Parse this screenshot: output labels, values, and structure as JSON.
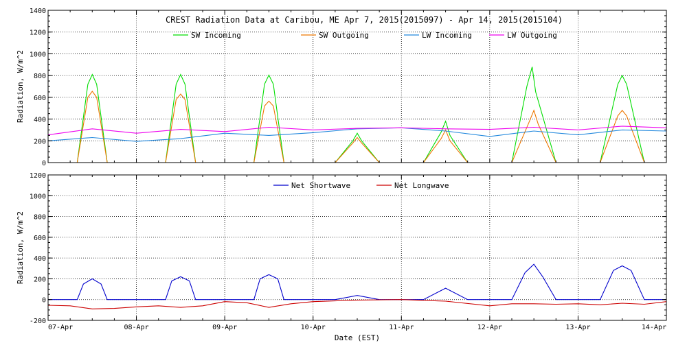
{
  "chart_data": [
    {
      "type": "line",
      "title": "CREST Radiation Data at Caribou, ME   Apr  7, 2015(2015097) - Apr 14, 2015(2015104)",
      "ylabel": "Radiation, W/m^2",
      "xlabel": "",
      "ylim": [
        0,
        1400
      ],
      "yticks": [
        0,
        200,
        400,
        600,
        800,
        1000,
        1200,
        1400
      ],
      "xlim": [
        0,
        7
      ],
      "grid": true,
      "legend_position": "top",
      "x_unit": "days since 07-Apr",
      "series": [
        {
          "name": "SW Incoming",
          "color": "#00dd00",
          "x": [
            0,
            0.33,
            0.45,
            0.5,
            0.55,
            0.67,
            1,
            1.33,
            1.45,
            1.5,
            1.55,
            1.67,
            2,
            2.33,
            2.45,
            2.5,
            2.55,
            2.67,
            3,
            3.25,
            3.45,
            3.5,
            3.55,
            3.75,
            4,
            4.25,
            4.45,
            4.5,
            4.55,
            4.75,
            5,
            5.25,
            5.42,
            5.48,
            5.52,
            5.75,
            6,
            6.25,
            6.45,
            6.5,
            6.55,
            6.75,
            7
          ],
          "y": [
            0,
            0,
            720,
            810,
            720,
            0,
            0,
            0,
            720,
            810,
            720,
            0,
            0,
            0,
            720,
            805,
            720,
            0,
            0,
            0,
            200,
            270,
            200,
            0,
            0,
            0,
            280,
            380,
            250,
            0,
            0,
            0,
            700,
            880,
            650,
            0,
            0,
            0,
            720,
            800,
            720,
            0,
            0
          ]
        },
        {
          "name": "SW Outgoing",
          "color": "#ee7700",
          "x": [
            0,
            0.33,
            0.45,
            0.5,
            0.55,
            0.67,
            1,
            1.33,
            1.45,
            1.5,
            1.55,
            1.67,
            2,
            2.33,
            2.45,
            2.5,
            2.55,
            2.67,
            3,
            3.25,
            3.45,
            3.5,
            3.55,
            3.75,
            4,
            4.25,
            4.45,
            4.5,
            4.55,
            4.75,
            5,
            5.25,
            5.45,
            5.5,
            5.55,
            5.75,
            6,
            6.25,
            6.45,
            6.5,
            6.55,
            6.75,
            7
          ],
          "y": [
            0,
            0,
            600,
            655,
            600,
            0,
            0,
            0,
            580,
            630,
            580,
            0,
            0,
            0,
            520,
            565,
            520,
            0,
            0,
            0,
            180,
            230,
            180,
            0,
            0,
            0,
            220,
            300,
            200,
            0,
            0,
            0,
            380,
            480,
            350,
            0,
            0,
            0,
            430,
            480,
            430,
            0,
            0
          ]
        },
        {
          "name": "LW Incoming",
          "color": "#2288dd",
          "x": [
            0,
            0.5,
            1,
            1.5,
            2,
            2.5,
            3,
            3.5,
            4,
            4.5,
            5,
            5.5,
            6,
            6.5,
            7
          ],
          "y": [
            200,
            230,
            195,
            220,
            270,
            250,
            275,
            310,
            320,
            290,
            240,
            290,
            255,
            300,
            290
          ]
        },
        {
          "name": "LW Outgoing",
          "color": "#ee00ee",
          "x": [
            0,
            0.5,
            1,
            1.5,
            2,
            2.5,
            3,
            3.5,
            4,
            4.5,
            5,
            5.5,
            6,
            6.5,
            7
          ],
          "y": [
            255,
            310,
            270,
            305,
            285,
            325,
            300,
            315,
            320,
            310,
            305,
            325,
            300,
            335,
            320
          ]
        }
      ]
    },
    {
      "type": "line",
      "title": "",
      "ylabel": "Radiation, W/m^2",
      "xlabel": "Date (EST)",
      "ylim": [
        -200,
        1200
      ],
      "yticks": [
        -200,
        0,
        200,
        400,
        600,
        800,
        1000,
        1200
      ],
      "xlim": [
        0,
        7
      ],
      "xticks": [
        "07-Apr",
        "08-Apr",
        "09-Apr",
        "10-Apr",
        "11-Apr",
        "12-Apr",
        "13-Apr",
        "14-Apr"
      ],
      "grid": true,
      "legend_position": "top",
      "series": [
        {
          "name": "Net Shortwave",
          "color": "#0000cc",
          "x": [
            0,
            0.33,
            0.4,
            0.5,
            0.6,
            0.67,
            1,
            1.33,
            1.4,
            1.5,
            1.6,
            1.67,
            2,
            2.33,
            2.4,
            2.5,
            2.6,
            2.67,
            3,
            3.25,
            3.5,
            3.75,
            4,
            4.25,
            4.5,
            4.75,
            5,
            5.25,
            5.4,
            5.5,
            5.6,
            5.75,
            6,
            6.25,
            6.4,
            6.5,
            6.6,
            6.75,
            7
          ],
          "y": [
            0,
            0,
            150,
            200,
            150,
            0,
            0,
            0,
            180,
            220,
            180,
            0,
            0,
            0,
            200,
            240,
            200,
            0,
            0,
            0,
            40,
            0,
            0,
            0,
            110,
            0,
            0,
            0,
            260,
            340,
            220,
            0,
            0,
            0,
            280,
            325,
            280,
            0,
            0
          ]
        },
        {
          "name": "Net Longwave",
          "color": "#cc0000",
          "x": [
            0,
            0.25,
            0.5,
            0.75,
            1,
            1.25,
            1.5,
            1.75,
            2,
            2.25,
            2.5,
            2.75,
            3,
            3.5,
            4,
            4.5,
            5,
            5.25,
            5.5,
            5.75,
            6,
            6.25,
            6.5,
            6.75,
            7
          ],
          "y": [
            -55,
            -60,
            -90,
            -85,
            -70,
            -60,
            -75,
            -60,
            -20,
            -30,
            -75,
            -40,
            -20,
            -5,
            0,
            -15,
            -60,
            -40,
            -40,
            -45,
            -40,
            -50,
            -35,
            -45,
            -20
          ]
        }
      ]
    }
  ]
}
